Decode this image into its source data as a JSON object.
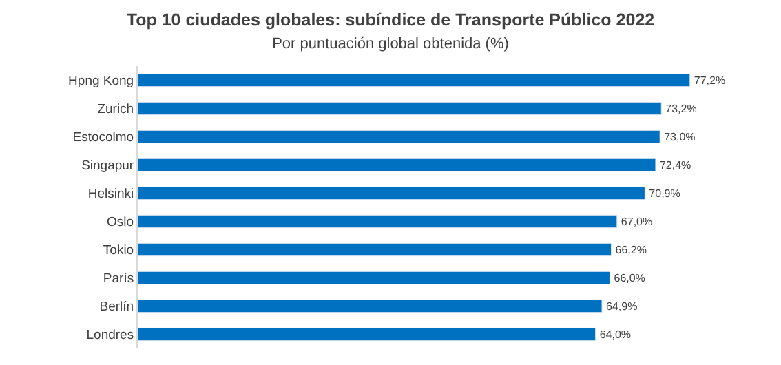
{
  "chart_data": {
    "type": "bar",
    "orientation": "horizontal",
    "title": "Top 10 ciudades globales: subíndice de Transporte Público 2022",
    "subtitle": "Por puntuación global obtenida (%)",
    "categories": [
      "Hpng Kong",
      "Zurich",
      "Estocolmo",
      "Singapur",
      "Helsinki",
      "Oslo",
      "Tokio",
      "París",
      "Berlín",
      "Londres"
    ],
    "values": [
      77.2,
      73.2,
      73.0,
      72.4,
      70.9,
      67.0,
      66.2,
      66.0,
      64.9,
      64.0
    ],
    "value_labels": [
      "77,2%",
      "73,2%",
      "73,0%",
      "72,4%",
      "70,9%",
      "67,0%",
      "66,2%",
      "66,0%",
      "64,9%",
      "64,0%"
    ],
    "color": "#0070c0",
    "tick_labels": "y",
    "legend": false
  }
}
